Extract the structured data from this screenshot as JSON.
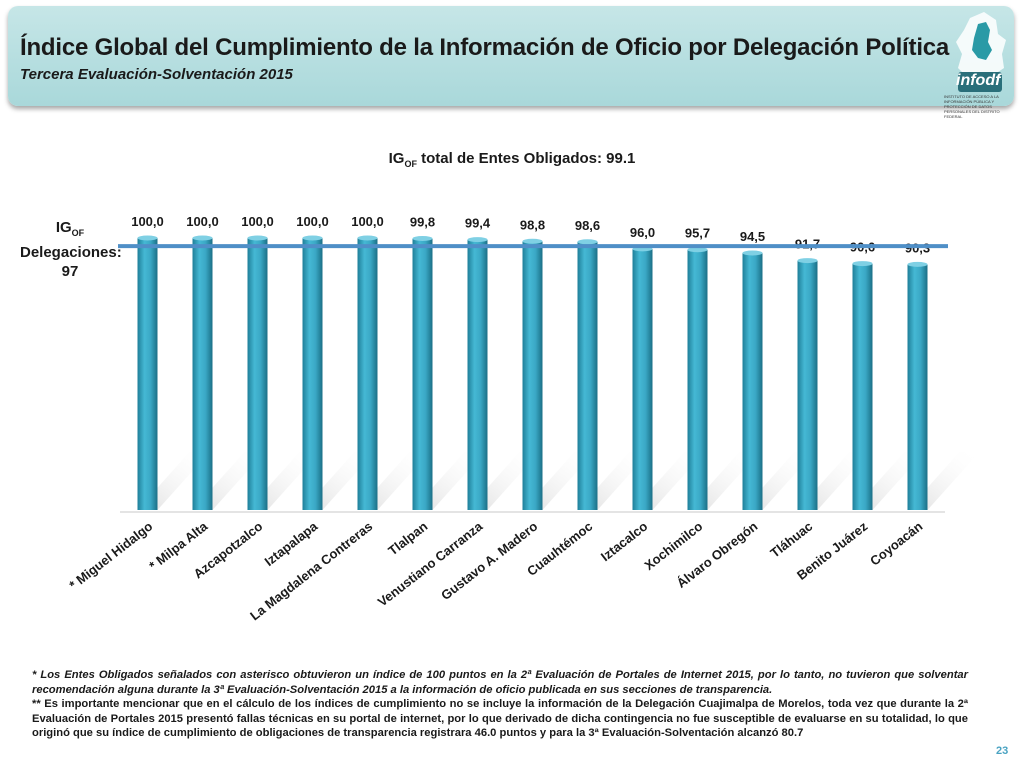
{
  "header": {
    "title": "Índice Global del Cumplimiento de la Información de Oficio por Delegación Política",
    "subtitle": "Tercera Evaluación-Solventación 2015",
    "logo_text": "infodf",
    "logo_subtext": "INSTITUTO DE ACCESO A LA INFORMACIÓN PÚBLICA Y PROTECCIÓN DE DATOS PERSONALES DEL DISTRITO FEDERAL"
  },
  "chart_title": {
    "prefix": "IG",
    "sub": "OF",
    "suffix": " total de Entes Obligados: 99.1"
  },
  "reference": {
    "prefix": "IG",
    "sub": "OF",
    "line2": "Delegaciones:",
    "line3": "97",
    "value": 97
  },
  "chart_data": {
    "type": "bar",
    "categories": [
      "* Miguel Hidalgo",
      "* Milpa Alta",
      "Azcapotzalco",
      "Iztapalapa",
      "La Magdalena Contreras",
      "Tlalpan",
      "Venustiano Carranza",
      "Gustavo A. Madero",
      "Cuauhtémoc",
      "Iztacalco",
      "Xochimilco",
      "Álvaro Obregón",
      "Tláhuac",
      "Benito Juárez",
      "Coyoacán"
    ],
    "values": [
      100.0,
      100.0,
      100.0,
      100.0,
      100.0,
      99.8,
      99.4,
      98.8,
      98.6,
      96.0,
      95.7,
      94.5,
      91.7,
      90.6,
      90.3
    ],
    "data_labels": [
      "100,0",
      "100,0",
      "100,0",
      "100,0",
      "100,0",
      "99,8",
      "99,4",
      "98,8",
      "98,6",
      "96,0",
      "95,7",
      "94,5",
      "91,7",
      "90,6",
      "90,3"
    ],
    "reference_line": 97,
    "bar_color": "#31a0bd",
    "line_color": "#4f8fc7"
  },
  "footnote": {
    "p1": "* Los Entes Obligados señalados con asterisco obtuvieron un índice de 100 puntos en la 2ª Evaluación de Portales de Internet 2015, por lo tanto, no tuvieron que solventar recomendación alguna durante la 3ª Evaluación-Solventación 2015 a la información de oficio publicada en sus secciones de transparencia.",
    "p2": "** Es importante mencionar que en el cálculo de los índices de cumplimiento no se incluye la información de la Delegación Cuajimalpa de Morelos, toda vez que durante la 2ª Evaluación de Portales 2015 presentó fallas técnicas en su portal de internet, por lo que derivado de dicha contingencia no fue susceptible de evaluarse en su totalidad, lo que originó que su índice de cumplimiento de obligaciones de transparencia registrara 46.0 puntos y para la 3ª Evaluación-Solventación alcanzó 80.7"
  },
  "page_number": "23"
}
